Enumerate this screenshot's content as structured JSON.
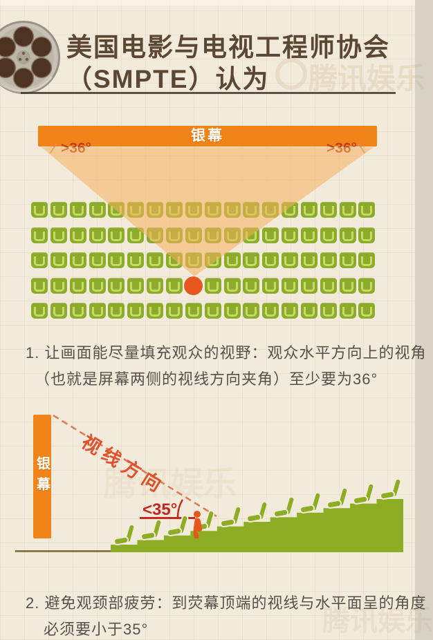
{
  "header": {
    "title_line1": "美国电影与电视工程师协会",
    "title_line2": "（SMPTE）认为"
  },
  "watermark": {
    "text": "腾讯娱乐"
  },
  "diagram1": {
    "screen_label": "银幕",
    "angle_left": ">36°",
    "angle_right": ">36°",
    "seats": {
      "rows": 5,
      "cols": 18,
      "missing_row": 4,
      "missing_col": 9
    }
  },
  "caption1": {
    "line1": "1. 让画面能尽量填充观众的视野：观众水平方向上的视角",
    "line2": "（也就是屏幕两侧的视线方向夹角）至少要为36°"
  },
  "diagram2": {
    "screen_label": "银幕",
    "sight_label": "视线方向",
    "angle_label": "<35°",
    "steps": 11
  },
  "caption2": {
    "line1": "2. 避免观颈部疲劳：到荧幕顶端的视线与水平面呈的角度",
    "line2": "必须要小于35°"
  },
  "colors": {
    "background": "#f2ebdb",
    "screen_orange": "#f08418",
    "cone_fill": "rgba(245,176,92,0.55)",
    "seat_green": "#8cab2a",
    "seat_inner_green": "#c6da67",
    "stair_green": "#8cad24",
    "viewer_orange": "#e5571d",
    "angle_red": "#c5281c",
    "sight_orange": "#e2512c",
    "dashed_salmon": "#e07a5a",
    "title_brown": "#5b4734",
    "text_gray": "#56514b"
  }
}
